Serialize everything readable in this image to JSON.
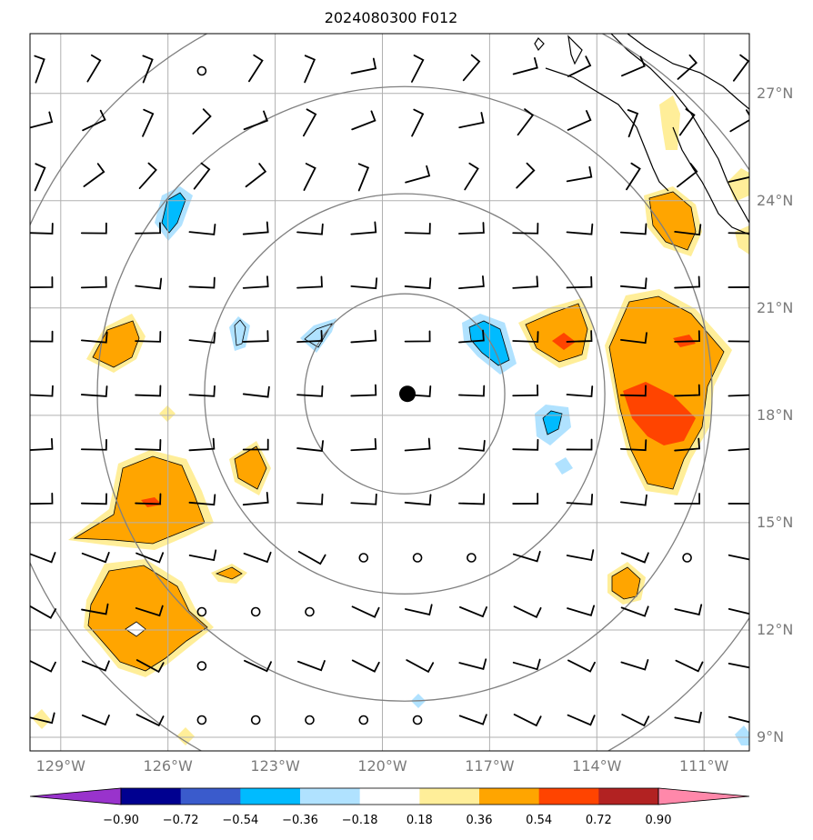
{
  "title": "2024080300 F012",
  "lat_labels": [
    {
      "text": "27°N",
      "lat": 27
    },
    {
      "text": "24°N",
      "lat": 24
    },
    {
      "text": "21°N",
      "lat": 21
    },
    {
      "text": "18°N",
      "lat": 18
    },
    {
      "text": "15°N",
      "lat": 15
    },
    {
      "text": "12°N",
      "lat": 12
    },
    {
      "text": "9°N",
      "lat": 9
    }
  ],
  "lon_labels": [
    {
      "text": "129°W",
      "lon": -129
    },
    {
      "text": "126°W",
      "lon": -126
    },
    {
      "text": "123°W",
      "lon": -123
    },
    {
      "text": "120°W",
      "lon": -120
    },
    {
      "text": "117°W",
      "lon": -117
    },
    {
      "text": "114°W",
      "lon": -114
    },
    {
      "text": "111°W",
      "lon": -111
    }
  ],
  "colorbar": {
    "ticks": [
      "−0.90",
      "−0.72",
      "−0.54",
      "−0.36",
      "−0.18",
      "0.18",
      "0.36",
      "0.54",
      "0.72",
      "0.90"
    ],
    "colors": [
      "#9933cc",
      "#000090",
      "#3a5bcc",
      "#00bbff",
      "#b0e2ff",
      "#ffffff",
      "#ffee99",
      "#ffa500",
      "#ff4400",
      "#b22222",
      "#ff88aa"
    ]
  },
  "center_marker": {
    "lon": -119.3,
    "lat": 18.6
  },
  "range_rings_deg": [
    2.8,
    5.6,
    8.6,
    11.5
  ]
}
